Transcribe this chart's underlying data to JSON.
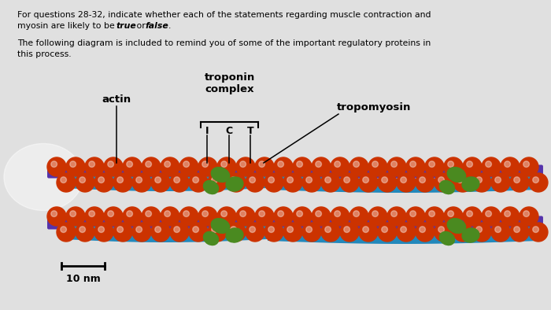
{
  "background_color": "#e0e0e0",
  "title_text_line1": "For questions 28-32, indicate whether each of the statements regarding muscle contraction and",
  "title_text_line2": "myosin are likely to be ",
  "title_text_line2b": "true",
  "title_text_line2c": " or ",
  "title_text_line2d": "false",
  "title_text_line2e": ".",
  "subtitle_line1": "The following diagram is included to remind you of some of the important regulatory proteins in",
  "subtitle_line2": "this process.",
  "label_actin": "actin",
  "label_troponin": "troponin\ncomplex",
  "label_tropomyosin": "tropomyosin",
  "label_I": "I",
  "label_C": "C",
  "label_T": "T",
  "label_10nm": "10 nm",
  "text_color": "#000000",
  "sphere_color": "#cc3300",
  "purple_rod_color": "#5533aa",
  "blue_band_color": "#2288bb",
  "green_blob_color": "#4a8a20"
}
